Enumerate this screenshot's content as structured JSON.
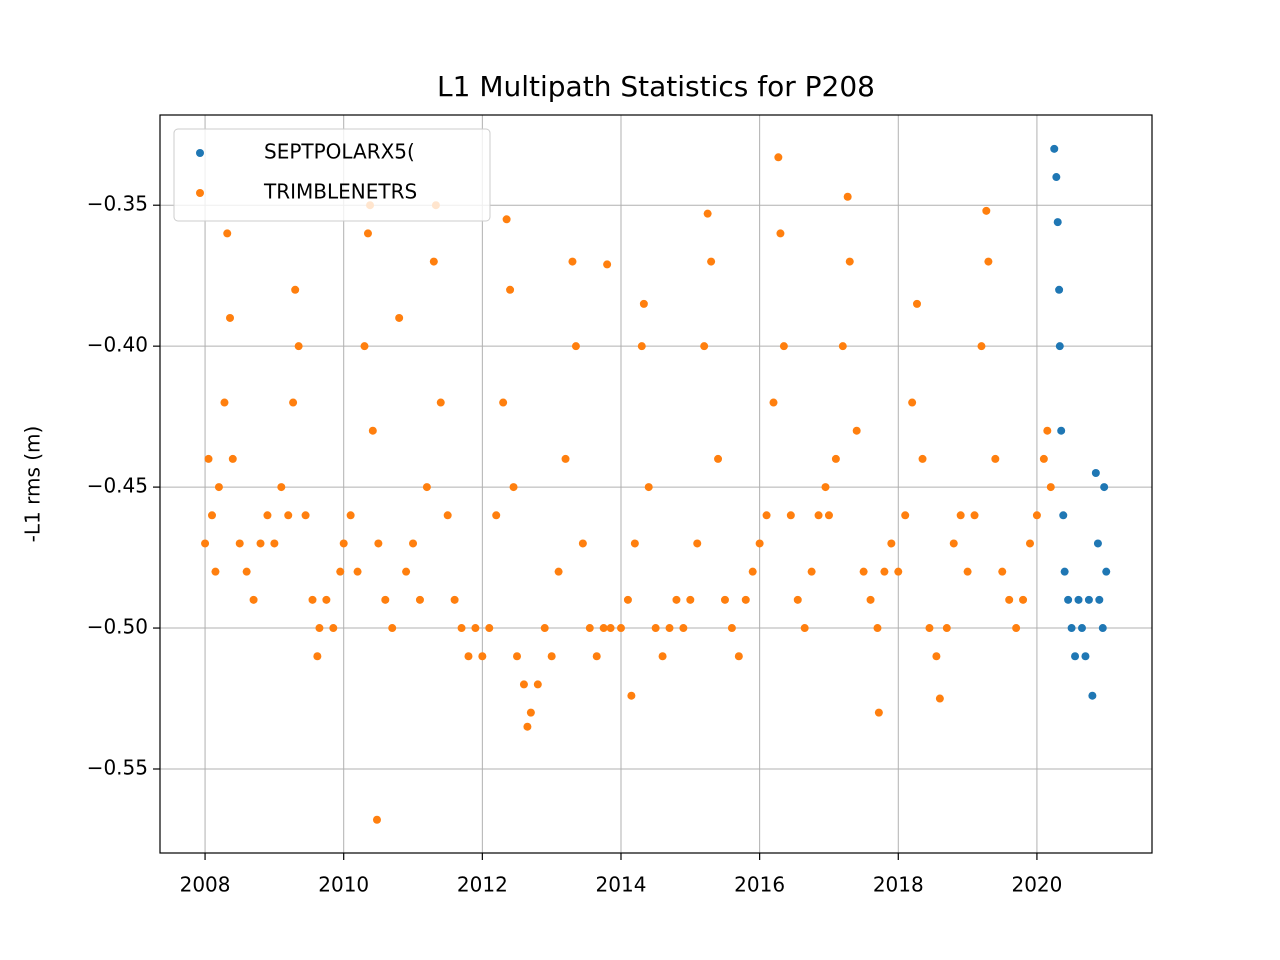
{
  "chart_data": {
    "type": "scatter",
    "title": "L1 Multipath Statistics for P208",
    "y_label": "-L1 rms (m)",
    "xlim": [
      2007.35,
      2021.66
    ],
    "ylim": [
      -0.5798,
      -0.318
    ],
    "xticks": [
      2008,
      2010,
      2012,
      2014,
      2016,
      2018,
      2020
    ],
    "yticks": [
      {
        "value": -0.55,
        "label": "−0.55"
      },
      {
        "value": -0.5,
        "label": "−0.50"
      },
      {
        "value": -0.45,
        "label": "−0.45"
      },
      {
        "value": -0.4,
        "label": "−0.40"
      },
      {
        "value": -0.35,
        "label": "−0.35"
      }
    ],
    "grid": true,
    "legend": "upper left",
    "series": [
      {
        "name": "SEPTPOLARX5(",
        "color": "#1f77b4",
        "x": [
          2020.25,
          2020.28,
          2020.3,
          2020.32,
          2020.33,
          2020.35,
          2020.38,
          2020.4,
          2020.45,
          2020.5,
          2020.55,
          2020.6,
          2020.65,
          2020.7,
          2020.75,
          2020.8,
          2020.85,
          2020.88,
          2020.9,
          2020.95,
          2021.0,
          2020.97
        ],
        "values": [
          -0.33,
          -0.34,
          -0.356,
          -0.38,
          -0.4,
          -0.43,
          -0.46,
          -0.48,
          -0.49,
          -0.5,
          -0.51,
          -0.49,
          -0.5,
          -0.51,
          -0.49,
          -0.524,
          -0.445,
          -0.47,
          -0.49,
          -0.5,
          -0.48,
          -0.45
        ]
      },
      {
        "name": "TRIMBLENETRS",
        "color": "#ff7f0e",
        "x": [
          2008.0,
          2008.05,
          2008.1,
          2008.15,
          2008.2,
          2008.28,
          2008.32,
          2008.36,
          2008.4,
          2008.5,
          2008.6,
          2008.7,
          2008.8,
          2008.9,
          2009.0,
          2009.1,
          2009.2,
          2009.27,
          2009.3,
          2009.35,
          2009.45,
          2009.55,
          2009.65,
          2009.75,
          2009.85,
          2009.95,
          2009.62,
          2010.0,
          2010.1,
          2010.2,
          2010.3,
          2010.35,
          2010.38,
          2010.42,
          2010.48,
          2010.5,
          2010.6,
          2010.7,
          2010.8,
          2010.9,
          2011.0,
          2011.1,
          2011.2,
          2011.3,
          2011.33,
          2011.4,
          2011.5,
          2011.6,
          2011.7,
          2011.8,
          2011.9,
          2012.0,
          2012.1,
          2012.2,
          2012.3,
          2012.35,
          2012.4,
          2012.45,
          2012.5,
          2012.6,
          2012.65,
          2012.7,
          2012.8,
          2012.9,
          2013.0,
          2013.1,
          2013.2,
          2013.3,
          2013.35,
          2013.45,
          2013.55,
          2013.65,
          2013.75,
          2013.85,
          2013.8,
          2014.0,
          2014.1,
          2014.2,
          2014.3,
          2014.33,
          2014.4,
          2014.5,
          2014.6,
          2014.7,
          2014.8,
          2014.9,
          2014.15,
          2015.0,
          2015.1,
          2015.2,
          2015.25,
          2015.3,
          2015.4,
          2015.5,
          2015.6,
          2015.7,
          2015.8,
          2015.9,
          2016.0,
          2016.1,
          2016.2,
          2016.27,
          2016.3,
          2016.35,
          2016.45,
          2016.55,
          2016.65,
          2016.75,
          2016.85,
          2016.95,
          2017.0,
          2017.1,
          2017.2,
          2017.27,
          2017.3,
          2017.4,
          2017.5,
          2017.6,
          2017.7,
          2017.72,
          2017.8,
          2017.9,
          2018.0,
          2018.1,
          2018.2,
          2018.27,
          2018.35,
          2018.45,
          2018.55,
          2018.6,
          2018.7,
          2018.8,
          2018.9,
          2019.0,
          2019.1,
          2019.2,
          2019.27,
          2019.3,
          2019.4,
          2019.5,
          2019.6,
          2019.7,
          2019.8,
          2019.9,
          2020.0,
          2020.1,
          2020.15,
          2020.2
        ],
        "values": [
          -0.47,
          -0.44,
          -0.46,
          -0.48,
          -0.45,
          -0.42,
          -0.36,
          -0.39,
          -0.44,
          -0.47,
          -0.48,
          -0.49,
          -0.47,
          -0.46,
          -0.47,
          -0.45,
          -0.46,
          -0.42,
          -0.38,
          -0.4,
          -0.46,
          -0.49,
          -0.5,
          -0.49,
          -0.5,
          -0.48,
          -0.51,
          -0.47,
          -0.46,
          -0.48,
          -0.4,
          -0.36,
          -0.35,
          -0.43,
          -0.568,
          -0.47,
          -0.49,
          -0.5,
          -0.39,
          -0.48,
          -0.47,
          -0.49,
          -0.45,
          -0.37,
          -0.35,
          -0.42,
          -0.46,
          -0.49,
          -0.5,
          -0.51,
          -0.5,
          -0.51,
          -0.5,
          -0.46,
          -0.42,
          -0.355,
          -0.38,
          -0.45,
          -0.51,
          -0.52,
          -0.535,
          -0.53,
          -0.52,
          -0.5,
          -0.51,
          -0.48,
          -0.44,
          -0.37,
          -0.4,
          -0.47,
          -0.5,
          -0.51,
          -0.5,
          -0.5,
          -0.371,
          -0.5,
          -0.49,
          -0.47,
          -0.4,
          -0.385,
          -0.45,
          -0.5,
          -0.51,
          -0.5,
          -0.49,
          -0.5,
          -0.524,
          -0.49,
          -0.47,
          -0.4,
          -0.353,
          -0.37,
          -0.44,
          -0.49,
          -0.5,
          -0.51,
          -0.49,
          -0.48,
          -0.47,
          -0.46,
          -0.42,
          -0.333,
          -0.36,
          -0.4,
          -0.46,
          -0.49,
          -0.5,
          -0.48,
          -0.46,
          -0.45,
          -0.46,
          -0.44,
          -0.4,
          -0.347,
          -0.37,
          -0.43,
          -0.48,
          -0.49,
          -0.5,
          -0.53,
          -0.48,
          -0.47,
          -0.48,
          -0.46,
          -0.42,
          -0.385,
          -0.44,
          -0.5,
          -0.51,
          -0.525,
          -0.5,
          -0.47,
          -0.46,
          -0.48,
          -0.46,
          -0.4,
          -0.352,
          -0.37,
          -0.44,
          -0.48,
          -0.49,
          -0.5,
          -0.49,
          -0.47,
          -0.46,
          -0.44,
          -0.43,
          -0.45
        ]
      }
    ]
  }
}
